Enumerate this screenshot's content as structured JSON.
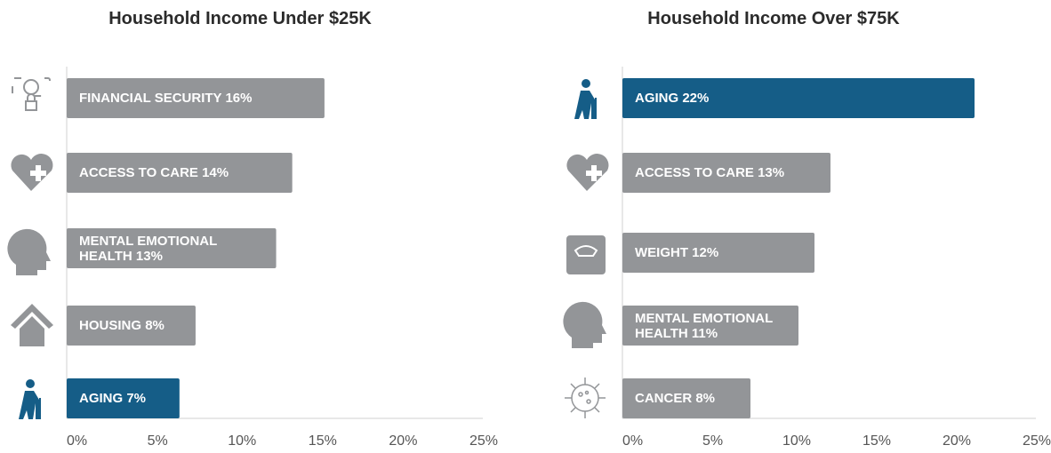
{
  "chart_data": [
    {
      "type": "bar",
      "orientation": "horizontal",
      "title": "Household Income Under $25K",
      "categories": [
        "FINANCIAL SECURITY",
        "ACCESS TO CARE",
        "MENTAL EMOTIONAL HEALTH",
        "HOUSING",
        "AGING"
      ],
      "values": [
        16,
        14,
        13,
        8,
        7
      ],
      "value_labels": [
        "16%",
        "14%",
        "13%",
        "8%",
        "7%"
      ],
      "colors": [
        "#939598",
        "#939598",
        "#939598",
        "#939598",
        "#155d87"
      ],
      "xlim": [
        0,
        25
      ],
      "xticks": [
        {
          "value": 0,
          "label": "0%"
        },
        {
          "value": 5,
          "label": "5%"
        },
        {
          "value": 10,
          "label": "10%"
        },
        {
          "value": 15,
          "label": "15%"
        },
        {
          "value": 20,
          "label": "20%"
        },
        {
          "value": 25,
          "label": "25%"
        }
      ]
    },
    {
      "type": "bar",
      "orientation": "horizontal",
      "title": "Household Income Over $75K",
      "categories": [
        "AGING",
        "ACCESS TO CARE",
        "WEIGHT",
        "MENTAL EMOTIONAL HEALTH",
        "CANCER"
      ],
      "values": [
        22,
        13,
        12,
        11,
        8
      ],
      "value_labels": [
        "22%",
        "13%",
        "12%",
        "11%",
        "8%"
      ],
      "colors": [
        "#155d87",
        "#939598",
        "#939598",
        "#939598",
        "#939598"
      ],
      "xlim": [
        0,
        25
      ],
      "xticks": [
        {
          "value": 0,
          "label": "0%"
        },
        {
          "value": 5,
          "label": "5%"
        },
        {
          "value": 10,
          "label": "10%"
        },
        {
          "value": 15,
          "label": "15%"
        },
        {
          "value": 20,
          "label": "20%"
        },
        {
          "value": 25,
          "label": "25%"
        }
      ]
    }
  ]
}
